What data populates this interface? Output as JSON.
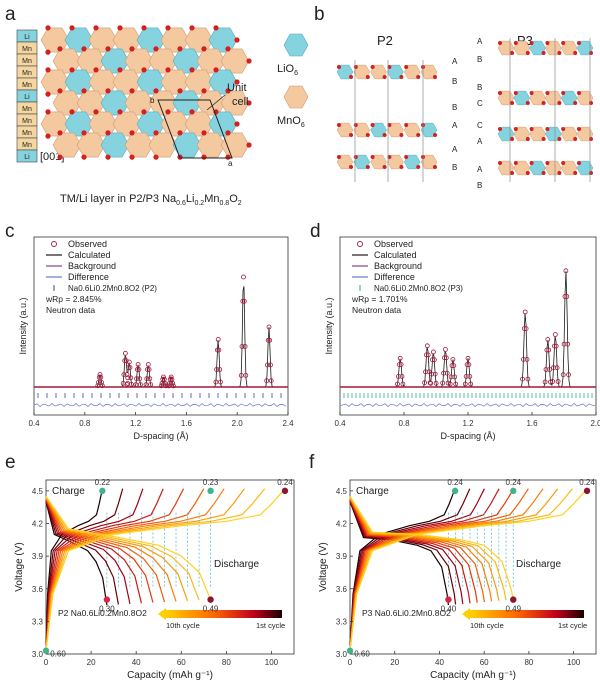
{
  "panels": {
    "a": {
      "letter": "a",
      "stack_labels": [
        "Li",
        "Mn",
        "Mn",
        "Mn",
        "Mn",
        "Li",
        "Mn",
        "Mn",
        "Mn",
        "Mn",
        "Li"
      ],
      "direction_label": "[001]",
      "unit_cell_label_line1": "Unit",
      "unit_cell_label_line2": "cell",
      "cell_a": "a",
      "cell_b": "b",
      "legend_li": "LiO",
      "legend_li_sub": "6",
      "legend_mn": "MnO",
      "legend_mn_sub": "6",
      "caption_prefix": "TM/Li layer in P2/P3 Na",
      "caption_formula": [
        {
          "t": "0.6",
          "sub": true
        },
        {
          "t": "Li",
          "sub": false
        },
        {
          "t": "0.2",
          "sub": true
        },
        {
          "t": "Mn",
          "sub": false
        },
        {
          "t": "0.8",
          "sub": true
        },
        {
          "t": "O",
          "sub": false
        },
        {
          "t": "2",
          "sub": true
        }
      ]
    },
    "b": {
      "letter": "b",
      "p2_title": "P2",
      "p3_title": "P3",
      "p2_stacking": [
        "A",
        "B",
        "B",
        "A",
        "A",
        "B"
      ],
      "p3_stacking": [
        "A",
        "B",
        "B",
        "C",
        "C",
        "A",
        "A",
        "B"
      ]
    },
    "c": {
      "letter": "c",
      "legend": [
        "Observed",
        "Calculated",
        "Background",
        "Difference"
      ],
      "phase_label": "Na0.6Li0.2Mn0.8O2 (P2)",
      "wrp": "wRp = 2.845%",
      "data_note": "Neutron data",
      "ylabel": "Intensity (a.u.)",
      "xlabel": "D-spacing (Å)",
      "xticks": [
        "0.4",
        "0.8",
        "1.2",
        "1.6",
        "2.0",
        "2.4"
      ]
    },
    "d": {
      "letter": "d",
      "legend": [
        "Observed",
        "Calculated",
        "Background",
        "Difference"
      ],
      "phase_label": "Na0.6Li0.2Mn0.8O2 (P3)",
      "wrp": "wRp = 1.701%",
      "data_note": "Neutron data",
      "ylabel": "Intensity (a.u.)",
      "xlabel": "D-spacing (Å)",
      "xticks": [
        "0.4",
        "0.8",
        "1.2",
        "1.6",
        "2.0"
      ]
    },
    "e": {
      "letter": "e",
      "charge_label": "Charge",
      "discharge_label": "Discharge",
      "sample_label": "P2 Na0.6Li0.2Mn0.8O2",
      "cycle_10": "10th cycle",
      "cycle_1": "1st cycle",
      "ylabel": "Voltage (V)",
      "xlabel": "Capacity (mAh g⁻¹)",
      "yticks": [
        "3.0",
        "3.3",
        "3.6",
        "3.9",
        "4.2",
        "4.5"
      ],
      "xticks": [
        "0",
        "20",
        "40",
        "60",
        "80",
        "100"
      ],
      "annotations": [
        "0.22",
        "0.23",
        "0.24",
        "0.30",
        "0.49",
        "0.60"
      ]
    },
    "f": {
      "letter": "f",
      "charge_label": "Charge",
      "discharge_label": "Discharge",
      "sample_label": "P3 Na0.6Li0.2Mn0.8O2",
      "cycle_10": "10th cycle",
      "cycle_1": "1st cycle",
      "ylabel": "Voltage (V)",
      "xlabel": "Capacity (mAh g⁻¹)",
      "yticks": [
        "3.0",
        "3.3",
        "3.6",
        "3.9",
        "4.2",
        "4.5"
      ],
      "xticks": [
        "0",
        "20",
        "40",
        "60",
        "80",
        "100"
      ],
      "annotations": [
        "0.24",
        "0.24",
        "0.24",
        "0.40",
        "0.49",
        "0.60"
      ]
    }
  },
  "chart_data": [
    {
      "type": "line",
      "panel": "c",
      "xlabel": "D-spacing (Å)",
      "ylabel": "Intensity (a.u.)",
      "xlim": [
        0.4,
        2.4
      ],
      "series": [
        {
          "name": "Observed",
          "peaks_d": [
            0.92,
            1.12,
            1.15,
            1.22,
            1.3,
            1.42,
            1.48,
            1.85,
            2.05,
            2.25
          ],
          "peaks_rel": [
            0.1,
            0.27,
            0.2,
            0.18,
            0.18,
            0.08,
            0.08,
            0.38,
            0.88,
            0.48
          ]
        }
      ]
    },
    {
      "type": "line",
      "panel": "d",
      "xlabel": "D-spacing (Å)",
      "ylabel": "Intensity (a.u.)",
      "xlim": [
        0.4,
        2.1
      ],
      "series": [
        {
          "name": "Observed",
          "peaks_d": [
            0.8,
            0.98,
            1.02,
            1.1,
            1.15,
            1.25,
            1.63,
            1.78,
            1.83,
            1.9
          ],
          "peaks_rel": [
            0.23,
            0.33,
            0.28,
            0.3,
            0.22,
            0.23,
            0.6,
            0.38,
            0.42,
            0.93
          ]
        }
      ]
    },
    {
      "type": "line",
      "panel": "e",
      "xlabel": "Capacity (mAh g⁻¹)",
      "ylabel": "Voltage (V)",
      "xlim": [
        0,
        110
      ],
      "ylim": [
        3.0,
        4.6
      ],
      "series": [
        {
          "name": "Charge 1st cycle",
          "x": [
            0,
            3,
            10,
            30,
            60,
            80,
            95,
            100,
            106
          ],
          "y": [
            3.03,
            3.55,
            3.95,
            4.1,
            4.18,
            4.22,
            4.28,
            4.38,
            4.52
          ]
        },
        {
          "name": "Discharge 1st cycle",
          "x": [
            0,
            10,
            30,
            50,
            60,
            68,
            72,
            73
          ],
          "y": [
            4.45,
            4.15,
            4.08,
            4.0,
            3.9,
            3.75,
            3.55,
            3.5
          ]
        },
        {
          "name": "Charge 10th cycle",
          "x": [
            0,
            5,
            15,
            20,
            24,
            25
          ],
          "y": [
            3.3,
            3.9,
            4.1,
            4.25,
            4.4,
            4.5
          ]
        },
        {
          "name": "Discharge 10th cycle",
          "x": [
            0,
            5,
            15,
            22,
            26,
            27
          ],
          "y": [
            4.45,
            4.1,
            3.9,
            3.7,
            3.55,
            3.5
          ]
        }
      ]
    },
    {
      "type": "line",
      "panel": "f",
      "xlabel": "Capacity (mAh g⁻¹)",
      "ylabel": "Voltage (V)",
      "xlim": [
        0,
        110
      ],
      "ylim": [
        3.0,
        4.6
      ],
      "series": [
        {
          "name": "Charge 1st cycle",
          "x": [
            0,
            3,
            10,
            30,
            60,
            80,
            95,
            100,
            106
          ],
          "y": [
            3.03,
            3.55,
            3.95,
            4.1,
            4.18,
            4.22,
            4.28,
            4.38,
            4.52
          ]
        },
        {
          "name": "Discharge 1st cycle",
          "x": [
            0,
            10,
            30,
            50,
            60,
            68,
            72,
            73
          ],
          "y": [
            4.45,
            4.12,
            4.1,
            4.05,
            4.0,
            3.85,
            3.6,
            3.5
          ]
        },
        {
          "name": "Charge 10th cycle",
          "x": [
            0,
            5,
            15,
            30,
            45,
            47
          ],
          "y": [
            3.5,
            3.95,
            4.12,
            4.2,
            4.4,
            4.5
          ]
        },
        {
          "name": "Discharge 10th cycle",
          "x": [
            0,
            5,
            15,
            30,
            42,
            44
          ],
          "y": [
            4.45,
            4.12,
            4.08,
            4.0,
            3.7,
            3.5
          ]
        }
      ]
    }
  ]
}
